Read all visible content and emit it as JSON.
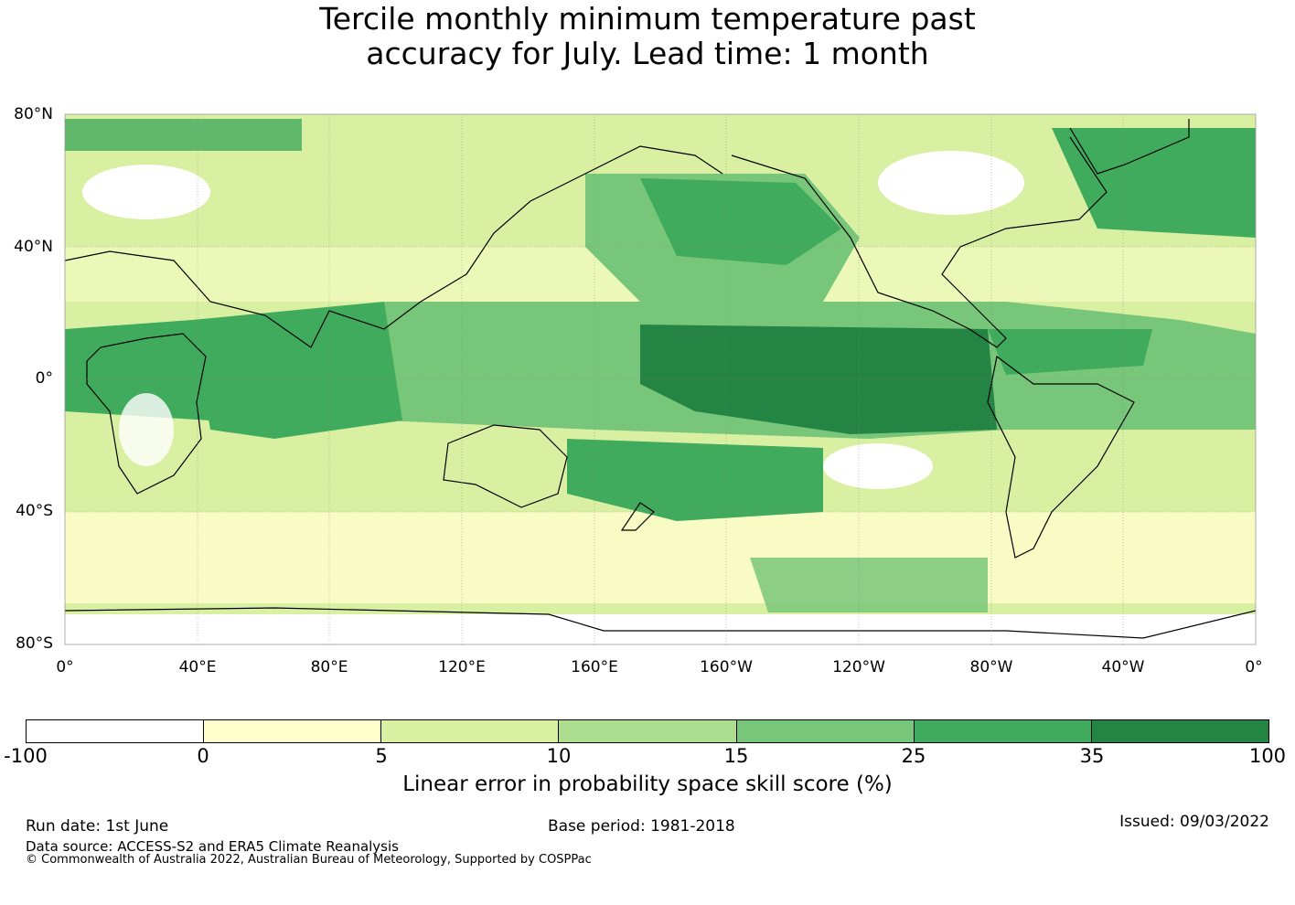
{
  "title": {
    "line1": "Tercile monthly minimum temperature past",
    "line2": "accuracy for July. Lead time: 1 month"
  },
  "map": {
    "lat_labels": [
      "80°N",
      "40°N",
      "0°",
      "40°S",
      "80°S"
    ],
    "lon_labels": [
      "0°",
      "40°E",
      "80°E",
      "120°E",
      "160°E",
      "160°W",
      "120°W",
      "80°W",
      "40°W",
      "0°"
    ]
  },
  "colorbar": {
    "ticks": [
      "-100",
      "0",
      "5",
      "10",
      "15",
      "25",
      "35",
      "100"
    ],
    "colors": [
      "#ffffff",
      "#ffffcc",
      "#d9f0a3",
      "#addd8e",
      "#78c679",
      "#41ab5d",
      "#238443"
    ],
    "label": "Linear error in probability space skill score (%)"
  },
  "footer": {
    "run_date": "Run date: 1st June",
    "base_period": "Base period: 1981-2018",
    "issued": "Issued: 09/03/2022",
    "data_source": "Data source: ACCESS-S2 and ERA5 Climate Reanalysis",
    "copyright": "© Commonwealth of Australia 2022, Australian Bureau of Meteorology, Supported by COSPPac"
  }
}
